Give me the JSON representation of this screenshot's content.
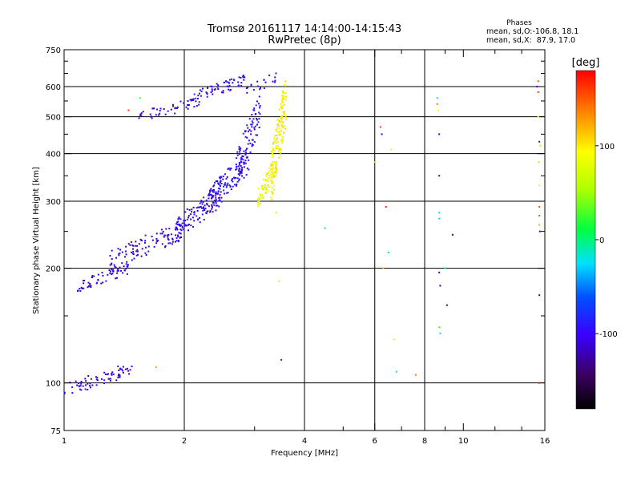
{
  "chart_data": {
    "type": "scatter",
    "title_line1": "Tromsø 20161117 14:14:00-14:15:43",
    "title_line2": "RwPretec (8p)",
    "phases_title": "Phases",
    "phases_line1": "mean, sd,O:-106.8, 18.1",
    "phases_line2": "mean, sd,X:  87.9, 17.0",
    "xlabel": "Frequency [MHz]",
    "ylabel": "Stationary phase Virtual Height [km]",
    "x_scale": "log",
    "y_scale": "log",
    "xlim": [
      1,
      16
    ],
    "ylim": [
      75,
      750
    ],
    "x_ticks": [
      {
        "value": 1,
        "label": "1"
      },
      {
        "value": 2,
        "label": "2"
      },
      {
        "value": 4,
        "label": "4"
      },
      {
        "value": 6,
        "label": "6"
      },
      {
        "value": 8,
        "label": "8"
      },
      {
        "value": 10,
        "label": "10"
      },
      {
        "value": 16,
        "label": "16"
      }
    ],
    "x_minor_ticks": [
      3,
      5,
      7,
      9,
      12,
      14
    ],
    "x_gridlines": [
      2,
      4,
      6,
      8
    ],
    "y_ticks": [
      {
        "value": 75,
        "label": "75"
      },
      {
        "value": 100,
        "label": "100"
      },
      {
        "value": 200,
        "label": "200"
      },
      {
        "value": 300,
        "label": "300"
      },
      {
        "value": 400,
        "label": "400"
      },
      {
        "value": 500,
        "label": "500"
      },
      {
        "value": 600,
        "label": "600"
      },
      {
        "value": 750,
        "label": "750"
      }
    ],
    "y_minor_ticks": [
      150,
      250,
      350,
      450,
      550,
      650,
      700
    ],
    "y_gridlines": [
      100,
      200,
      300,
      400,
      500,
      600
    ],
    "grid": true,
    "colorbar": {
      "label": "[deg]",
      "range": [
        -180,
        180
      ],
      "ticks": [
        {
          "value": 100,
          "label": "100"
        },
        {
          "value": 0,
          "label": "0"
        },
        {
          "value": -100,
          "label": "-100"
        }
      ],
      "colormap": "rainbow"
    },
    "series": [
      {
        "comment_free": true,
        "f_range": [
          1.0,
          1.48
        ],
        "h_range": [
          93,
          112
        ],
        "phase": -110,
        "n": 70
      },
      {
        "f_range": [
          1.08,
          1.45
        ],
        "h_range": [
          175,
          205
        ],
        "phase": -105,
        "n": 60
      },
      {
        "f_range": [
          1.3,
          2.0
        ],
        "h_range": [
          200,
          265
        ],
        "phase": -108,
        "n": 110
      },
      {
        "f_range": [
          1.9,
          2.5
        ],
        "h_range": [
          240,
          330
        ],
        "phase": -100,
        "n": 120
      },
      {
        "f_range": [
          2.3,
          2.9
        ],
        "h_range": [
          290,
          400
        ],
        "phase": -98,
        "n": 120
      },
      {
        "f_range": [
          2.7,
          3.1
        ],
        "h_range": [
          340,
          560
        ],
        "phase": -95,
        "n": 90
      },
      {
        "f_range": [
          3.05,
          3.35
        ],
        "h_range": [
          290,
          380
        ],
        "phase": 85,
        "n": 70
      },
      {
        "f_range": [
          3.3,
          3.6
        ],
        "h_range": [
          310,
          620
        ],
        "phase": 92,
        "n": 160
      },
      {
        "f_range": [
          1.5,
          2.2
        ],
        "h_range": [
          485,
          560
        ],
        "phase": -105,
        "n": 50
      },
      {
        "f_range": [
          2.1,
          2.85
        ],
        "h_range": [
          550,
          640
        ],
        "phase": -100,
        "n": 60
      },
      {
        "f_range": [
          2.8,
          3.4
        ],
        "h_range": [
          560,
          650
        ],
        "phase": -105,
        "n": 20
      }
    ],
    "sparse_points": [
      [
        1.55,
        560,
        30
      ],
      [
        1.7,
        110,
        120
      ],
      [
        1.45,
        520,
        160
      ],
      [
        3.4,
        280,
        70
      ],
      [
        3.45,
        185,
        100
      ],
      [
        3.5,
        115,
        -90
      ],
      [
        4.5,
        255,
        -20
      ],
      [
        6.0,
        380,
        110
      ],
      [
        6.2,
        470,
        160
      ],
      [
        6.25,
        450,
        -110
      ],
      [
        6.4,
        290,
        170
      ],
      [
        6.6,
        410,
        100
      ],
      [
        6.7,
        130,
        70
      ],
      [
        6.8,
        107,
        -10
      ],
      [
        7.6,
        105,
        140
      ],
      [
        6.5,
        220,
        -20
      ],
      [
        6.3,
        200,
        120
      ],
      [
        8.6,
        560,
        -10
      ],
      [
        8.6,
        540,
        140
      ],
      [
        8.65,
        520,
        90
      ],
      [
        8.7,
        450,
        -100
      ],
      [
        8.7,
        350,
        -110
      ],
      [
        8.7,
        280,
        -10
      ],
      [
        8.7,
        270,
        -10
      ],
      [
        8.7,
        195,
        -120
      ],
      [
        8.75,
        180,
        -130
      ],
      [
        8.7,
        140,
        30
      ],
      [
        8.75,
        135,
        -20
      ],
      [
        9.0,
        200,
        -10
      ],
      [
        9.1,
        160,
        -110
      ],
      [
        9.4,
        245,
        -130
      ],
      [
        15.3,
        600,
        -110
      ],
      [
        15.4,
        580,
        160
      ],
      [
        15.4,
        500,
        90
      ],
      [
        15.5,
        430,
        -120
      ],
      [
        15.45,
        380,
        110
      ],
      [
        15.5,
        330,
        100
      ],
      [
        15.5,
        290,
        150
      ],
      [
        15.5,
        275,
        150
      ],
      [
        15.5,
        260,
        120
      ],
      [
        15.55,
        250,
        -130
      ],
      [
        15.5,
        170,
        -120
      ],
      [
        15.5,
        100,
        170
      ],
      [
        15.6,
        420,
        110
      ],
      [
        15.4,
        620,
        150
      ]
    ]
  }
}
